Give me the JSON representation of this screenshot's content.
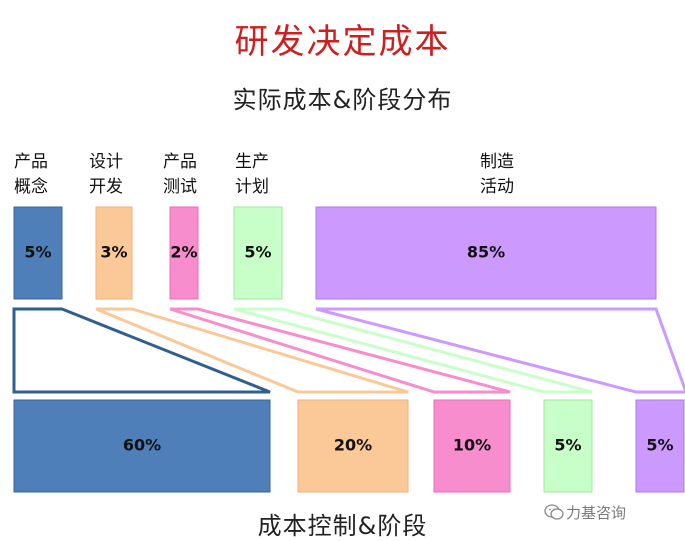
{
  "title": "研发决定成本",
  "subtitle": "实际成本&阶段分布",
  "bottom_label": "成本控制&阶段",
  "stages": [
    {
      "label": "产品\n概念",
      "actual": "5%",
      "control": "60%",
      "color": "#4f7fb8",
      "border": "#3a6396"
    },
    {
      "label": "设计\n开发",
      "actual": "3%",
      "control": "20%",
      "color": "#fbc898",
      "border": "#f2b278"
    },
    {
      "label": "产品\n测试",
      "actual": "2%",
      "control": "10%",
      "color": "#f78dcc",
      "border": "#ee6bb6"
    },
    {
      "label": "生产\n计划",
      "actual": "5%",
      "control": "5%",
      "color": "#c8ffc8",
      "border": "#9ee89e"
    },
    {
      "label": "制造\n活动",
      "actual": "85%",
      "control": "5%",
      "color": "#cc99ff",
      "border": "#b07ae6"
    }
  ],
  "funnel_outline_color": "#2f5f8f",
  "watermark": {
    "text": "力基咨询",
    "icon": "wechat-icon"
  }
}
